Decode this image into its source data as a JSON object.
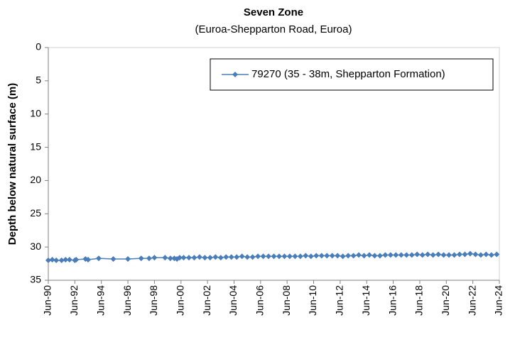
{
  "chart_data": {
    "type": "line",
    "title": "Seven Zone",
    "subtitle": "(Euroa-Shepparton Road, Euroa)",
    "y_label": "Depth below natural surface (m)",
    "y_reversed": true,
    "grid": false,
    "legend": "top-right",
    "xlim": [
      1990.5,
      2024.5
    ],
    "xticks": [
      {
        "value": 1990.5,
        "label": "Jun-90"
      },
      {
        "value": 1992.5,
        "label": "Jun-92"
      },
      {
        "value": 1994.5,
        "label": "Jun-94"
      },
      {
        "value": 1996.5,
        "label": "Jun-96"
      },
      {
        "value": 1998.5,
        "label": "Jun-98"
      },
      {
        "value": 2000.5,
        "label": "Jun-00"
      },
      {
        "value": 2002.5,
        "label": "Jun-02"
      },
      {
        "value": 2004.5,
        "label": "Jun-04"
      },
      {
        "value": 2006.5,
        "label": "Jun-06"
      },
      {
        "value": 2008.5,
        "label": "Jun-08"
      },
      {
        "value": 2010.5,
        "label": "Jun-10"
      },
      {
        "value": 2012.5,
        "label": "Jun-12"
      },
      {
        "value": 2014.5,
        "label": "Jun-14"
      },
      {
        "value": 2016.5,
        "label": "Jun-16"
      },
      {
        "value": 2018.5,
        "label": "Jun-18"
      },
      {
        "value": 2020.5,
        "label": "Jun-20"
      },
      {
        "value": 2022.5,
        "label": "Jun-22"
      },
      {
        "value": 2024.5,
        "label": "Jun-24"
      }
    ],
    "ylim": [
      0,
      35
    ],
    "yticks": [
      0,
      5,
      10,
      15,
      20,
      25,
      30,
      35
    ],
    "x": [
      1990.5,
      1990.8,
      1991.1,
      1991.5,
      1991.8,
      1992.1,
      1992.5,
      1992.6,
      1993.3,
      1993.5,
      1994.3,
      1995.4,
      1996.5,
      1997.5,
      1998.1,
      1998.5,
      1999.3,
      1999.7,
      2000.0,
      2000.2,
      2000.4,
      2000.7,
      2001.1,
      2001.5,
      2001.9,
      2002.3,
      2002.7,
      2003.1,
      2003.5,
      2003.9,
      2004.3,
      2004.7,
      2005.1,
      2005.5,
      2005.9,
      2006.3,
      2006.7,
      2007.1,
      2007.5,
      2007.9,
      2008.3,
      2008.7,
      2009.1,
      2009.5,
      2009.9,
      2010.3,
      2010.7,
      2011.1,
      2011.5,
      2011.9,
      2012.3,
      2012.7,
      2013.1,
      2013.5,
      2013.9,
      2014.3,
      2014.7,
      2015.1,
      2015.5,
      2015.9,
      2016.3,
      2016.7,
      2017.1,
      2017.5,
      2017.9,
      2018.3,
      2018.7,
      2019.1,
      2019.5,
      2019.9,
      2020.3,
      2020.7,
      2021.1,
      2021.5,
      2021.9,
      2022.3,
      2022.7,
      2023.1,
      2023.5,
      2023.9,
      2024.3
    ],
    "series": [
      {
        "name": "79270 (35 - 38m, Shepparton Formation)",
        "color": "#4a7ebb",
        "values": [
          32.0,
          31.9,
          32.0,
          32.0,
          31.9,
          31.9,
          32.0,
          31.9,
          31.8,
          31.9,
          31.7,
          31.8,
          31.8,
          31.7,
          31.7,
          31.6,
          31.6,
          31.7,
          31.7,
          31.8,
          31.6,
          31.6,
          31.6,
          31.6,
          31.5,
          31.6,
          31.6,
          31.5,
          31.6,
          31.5,
          31.5,
          31.5,
          31.4,
          31.5,
          31.5,
          31.4,
          31.4,
          31.4,
          31.4,
          31.4,
          31.4,
          31.4,
          31.4,
          31.4,
          31.3,
          31.4,
          31.3,
          31.3,
          31.3,
          31.3,
          31.3,
          31.4,
          31.3,
          31.3,
          31.2,
          31.3,
          31.2,
          31.3,
          31.3,
          31.2,
          31.2,
          31.2,
          31.2,
          31.2,
          31.2,
          31.1,
          31.2,
          31.1,
          31.2,
          31.1,
          31.2,
          31.2,
          31.2,
          31.1,
          31.1,
          31.0,
          31.1,
          31.2,
          31.1,
          31.2,
          31.1
        ]
      }
    ]
  }
}
